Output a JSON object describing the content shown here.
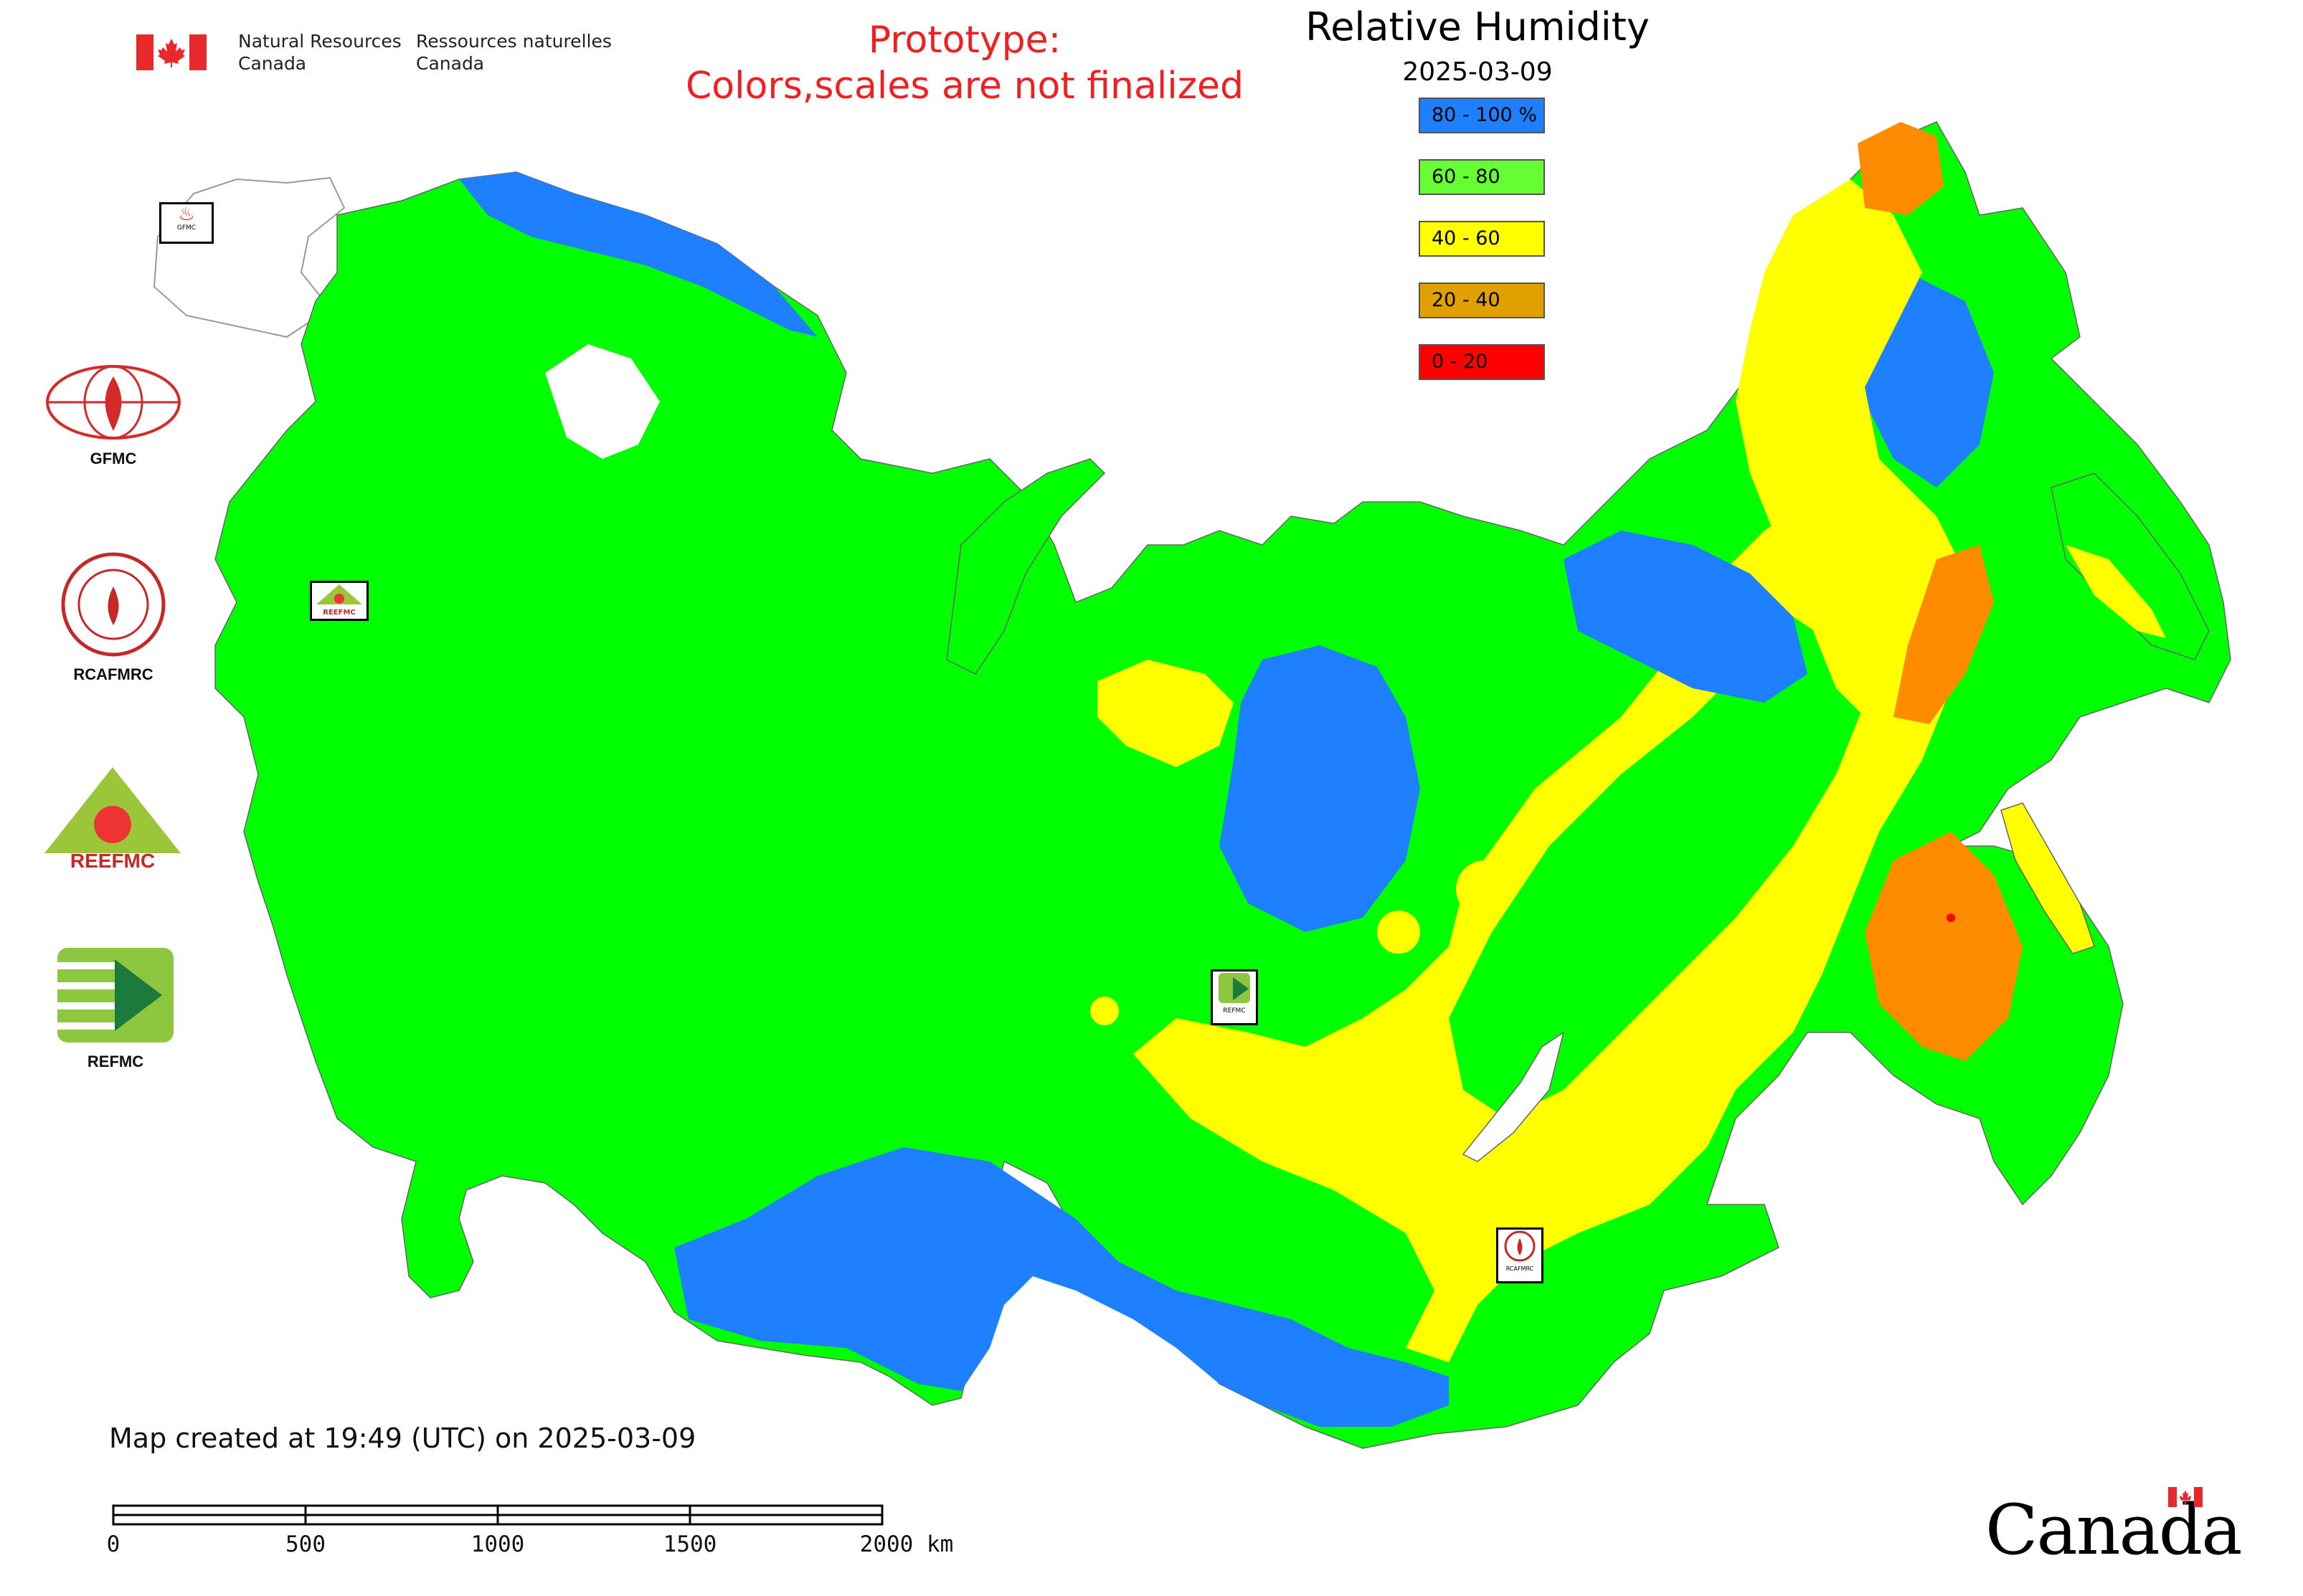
{
  "header": {
    "agency_en_line1": "Natural Resources",
    "agency_en_line2": "Canada",
    "agency_fr_line1": "Ressources naturelles",
    "agency_fr_line2": "Canada",
    "prototype_line1": "Prototype:",
    "prototype_line2": "Colors,scales are not finalized"
  },
  "legend": {
    "title": "Relative Humidity",
    "date": "2025-03-09",
    "items": [
      {
        "label": "80 - 100 %",
        "color": "#1e80ff"
      },
      {
        "label": "60 - 80",
        "color": "#66ff33"
      },
      {
        "label": "40 - 60",
        "color": "#ffff00"
      },
      {
        "label": "20 - 40",
        "color": "#e0a000"
      },
      {
        "label": "0 - 20",
        "color": "#ff0000"
      }
    ]
  },
  "side_logos": [
    {
      "label": "GFMC",
      "icon": "gfmc-logo-icon"
    },
    {
      "label": "RCAFMRC",
      "icon": "rcafmrc-logo-icon"
    },
    {
      "label": "",
      "icon": "reefmc-logo-icon",
      "text": "REEFMC"
    },
    {
      "label": "REFMC",
      "icon": "refmc-logo-icon"
    }
  ],
  "map_markers": [
    {
      "label": "GFMC"
    },
    {
      "label": "REEFMC"
    },
    {
      "label": "REFMC"
    },
    {
      "label": "RCAFMRC"
    }
  ],
  "footer": {
    "created": "Map created at 19:49 (UTC) on 2025-03-09",
    "scale_labels": [
      "0",
      "500",
      "1000",
      "1500",
      "2000 km"
    ],
    "wordmark": "Canada"
  },
  "colors": {
    "rh_80_100": "#1e80ff",
    "rh_60_80": "#00ff00",
    "rh_40_60": "#ffff00",
    "rh_20_40": "#ff8c00",
    "rh_0_20": "#ff0000",
    "prototype_text": "#ef1f22"
  }
}
